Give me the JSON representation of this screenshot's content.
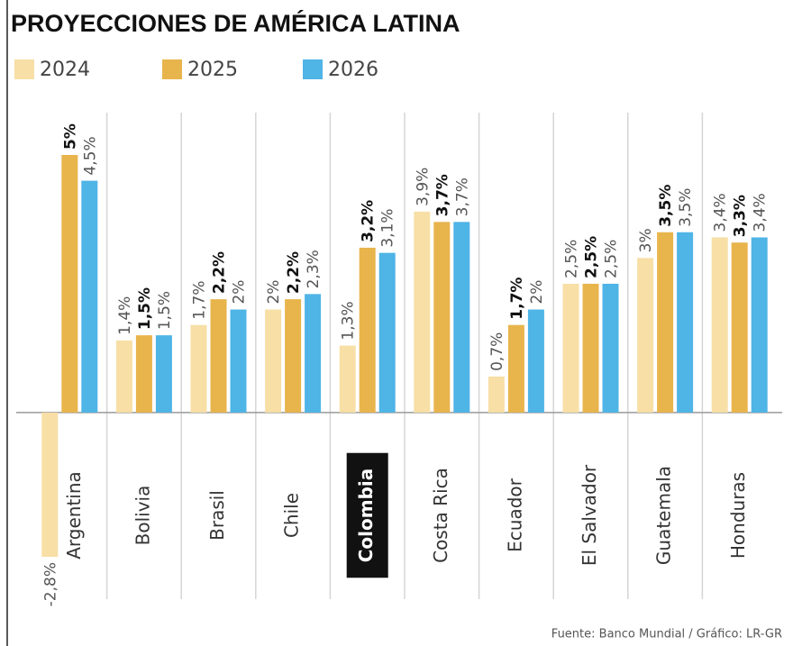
{
  "chart_data": {
    "type": "bar",
    "title": "PROYECCIONES DE AMÉRICA LATINA",
    "source": "Fuente: Banco Mundial / Gráfico: LR-GR",
    "categories": [
      "Argentina",
      "Bolivia",
      "Brasil",
      "Chile",
      "Colombia",
      "Costa Rica",
      "Ecuador",
      "El Salvador",
      "Guatemala",
      "Honduras"
    ],
    "highlight_index": 4,
    "series": [
      {
        "name": "2024",
        "color": "#f7dfa6",
        "bold": false,
        "values": [
          -2.8,
          1.4,
          1.7,
          2,
          1.3,
          3.9,
          0.7,
          2.5,
          3,
          3.4
        ],
        "value_labels": [
          "-2,8%",
          "1,4%",
          "1,7%",
          "2%",
          "1,3%",
          "3,9%",
          "0,7%",
          "2,5%",
          "3%",
          "3,4%"
        ]
      },
      {
        "name": "2025",
        "color": "#e8b44c",
        "bold": true,
        "values": [
          5,
          1.5,
          2.2,
          2.2,
          3.2,
          3.7,
          1.7,
          2.5,
          3.5,
          3.3
        ],
        "value_labels": [
          "5%",
          "1,5%",
          "2,2%",
          "2,2%",
          "3,2%",
          "3,7%",
          "1,7%",
          "2,5%",
          "3,5%",
          "3,3%"
        ]
      },
      {
        "name": "2026",
        "color": "#4fb4e6",
        "bold": false,
        "values": [
          4.5,
          1.5,
          2,
          2.3,
          3.1,
          3.7,
          2,
          2.5,
          3.5,
          3.4
        ],
        "value_labels": [
          "4,5%",
          "1,5%",
          "2%",
          "2,3%",
          "3,1%",
          "3,7%",
          "2%",
          "2,5%",
          "3,5%",
          "3,4%"
        ]
      }
    ]
  }
}
